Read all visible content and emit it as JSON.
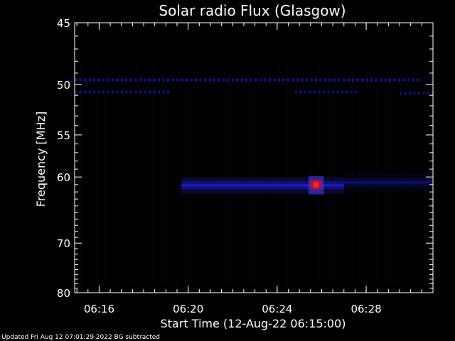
{
  "chart_data": {
    "type": "heatmap",
    "title": "Solar radio Flux (Glasgow)",
    "xlabel": "Start Time (12-Aug-22 06:15:00)",
    "ylabel": "Frequency [MHz]",
    "x_ticks": [
      "06:16",
      "06:20",
      "06:24",
      "06:28"
    ],
    "x_tick_minutes": [
      16,
      20,
      24,
      28
    ],
    "xlim_minutes": [
      14.9,
      31.0
    ],
    "y_ticks": [
      45,
      50,
      55,
      60,
      70,
      80
    ],
    "ylim": [
      45,
      80
    ],
    "y_scale": "reciprocal",
    "footer": "Updated Fri Aug 12 07:01:29 2022    BG subtracted",
    "colors": {
      "background": "#000000",
      "axis": "#ffffff",
      "band": "#1c1cff",
      "burst": "#ff2020"
    },
    "features": [
      {
        "name": "rfi-line",
        "t_start": 14.9,
        "t_end": 30.3,
        "freq": 49.6,
        "intensity": 0.65
      },
      {
        "name": "rfi-line",
        "t_start": 14.9,
        "t_end": 19.2,
        "freq": 50.7,
        "intensity": 0.55
      },
      {
        "name": "rfi-line",
        "t_start": 24.8,
        "t_end": 27.5,
        "freq": 50.7,
        "intensity": 0.5
      },
      {
        "name": "rfi-line",
        "t_start": 29.5,
        "t_end": 31.0,
        "freq": 50.8,
        "intensity": 0.5
      },
      {
        "name": "emission-band",
        "t_start": 19.7,
        "t_end": 27.0,
        "freq": 61.1,
        "intensity": 0.85
      },
      {
        "name": "emission-band",
        "t_start": 27.0,
        "t_end": 31.0,
        "freq": 60.7,
        "intensity": 0.35
      },
      {
        "name": "burst",
        "t_start": 25.5,
        "t_end": 26.0,
        "freq": 61.0,
        "intensity": 1.0
      }
    ]
  }
}
